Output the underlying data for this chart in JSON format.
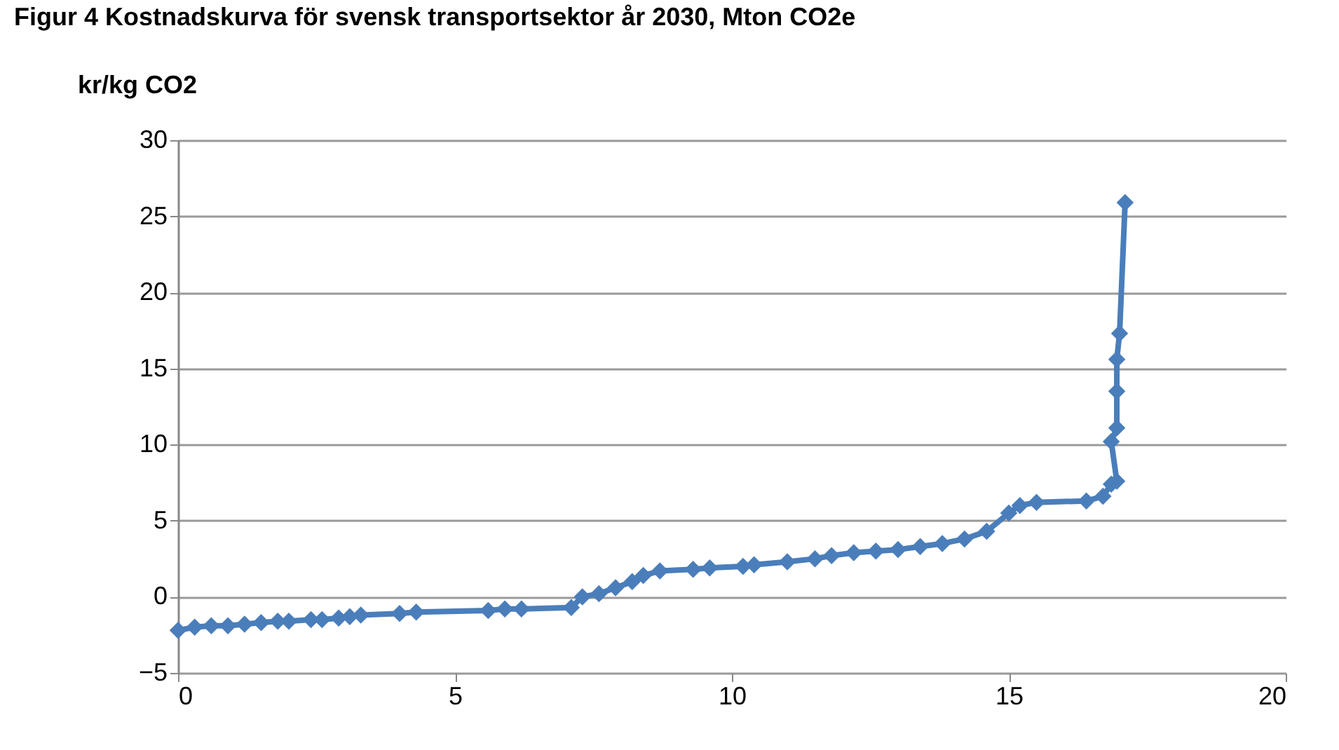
{
  "chart_data": {
    "type": "line",
    "title": "Figur 4 Kostnadskurva för svensk transportsektor år 2030, Mton CO2e",
    "ylabel": "kr/kg CO2",
    "x": [
      0,
      0.3,
      0.6,
      0.9,
      1.2,
      1.5,
      1.8,
      2.0,
      2.4,
      2.6,
      2.9,
      3.1,
      3.3,
      4.0,
      4.3,
      5.6,
      5.9,
      6.2,
      7.1,
      7.3,
      7.6,
      7.9,
      8.2,
      8.4,
      8.7,
      9.3,
      9.6,
      10.2,
      10.4,
      11.0,
      11.5,
      11.8,
      12.2,
      12.6,
      13.0,
      13.4,
      13.8,
      14.2,
      14.6,
      15.0,
      15.2,
      15.5,
      16.4,
      16.7,
      16.85,
      16.95,
      16.85,
      16.95,
      16.95,
      16.95,
      17.0,
      17.1
    ],
    "series": [
      {
        "color": "#4a7ebb",
        "values": [
          -2.2,
          -2.0,
          -1.9,
          -1.9,
          -1.8,
          -1.7,
          -1.6,
          -1.6,
          -1.5,
          -1.5,
          -1.4,
          -1.3,
          -1.2,
          -1.1,
          -1.0,
          -0.9,
          -0.8,
          -0.8,
          -0.7,
          0.0,
          0.2,
          0.6,
          1.0,
          1.4,
          1.7,
          1.8,
          1.9,
          2.0,
          2.1,
          2.3,
          2.5,
          2.7,
          2.9,
          3.0,
          3.1,
          3.3,
          3.5,
          3.8,
          4.3,
          5.5,
          6.0,
          6.2,
          6.3,
          6.6,
          7.4,
          7.6,
          10.2,
          11.1,
          13.5,
          15.6,
          17.3,
          25.9
        ]
      }
    ],
    "xlim": [
      0,
      20
    ],
    "xticks": [
      0,
      5,
      10,
      15,
      20
    ],
    "ylim": [
      -5,
      30
    ],
    "yticks": [
      -5,
      0,
      5,
      10,
      15,
      20,
      25,
      30
    ],
    "grid": "y",
    "marker": "diamond",
    "line_style": "solid"
  }
}
